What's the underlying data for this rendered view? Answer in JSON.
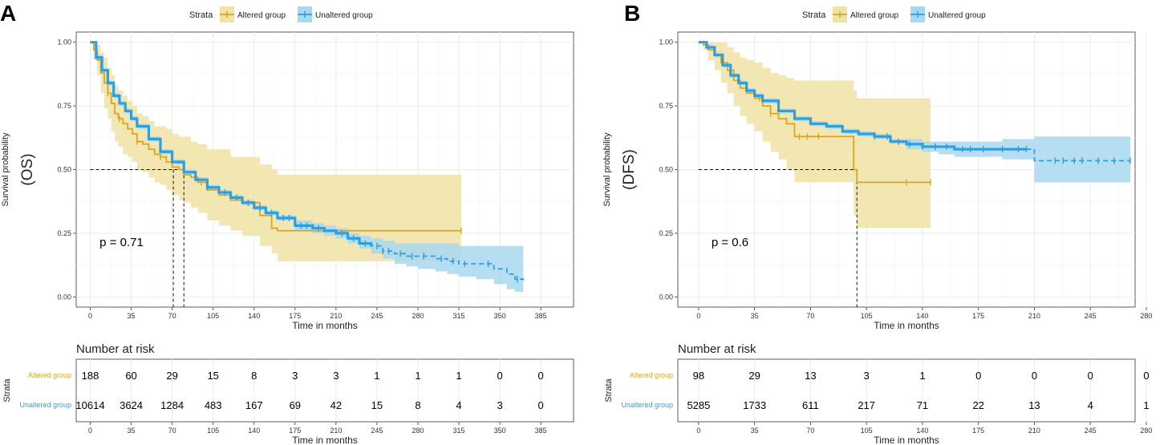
{
  "colors": {
    "altered": "#E7B800",
    "altered_line": "#DAA520",
    "unaltered": "#2E9FDF",
    "altered_band": "#F0E3A6",
    "unaltered_band": "#A8D8F0",
    "grid": "#EBEBEB",
    "axis": "#333333"
  },
  "chart_data": [
    {
      "type": "line",
      "panel_label": "A",
      "legend_title": "Strata",
      "legend": [
        "Altered group",
        "Unaltered group"
      ],
      "legend_position": "top",
      "ylabel_small": "Survival probability",
      "ylabel_big": "(OS)",
      "xlabel": "Time in months",
      "xlim": [
        -12,
        413
      ],
      "ylim": [
        -0.04,
        1.04
      ],
      "xticks": [
        0,
        35,
        70,
        105,
        140,
        175,
        210,
        245,
        280,
        315,
        350,
        385
      ],
      "yticks": [
        0.0,
        0.25,
        0.5,
        0.75,
        1.0
      ],
      "ytick_labels": [
        "0.00",
        "0.25",
        "0.50",
        "0.75",
        "1.00"
      ],
      "pvalue": "p = 0.71",
      "pvalue_pos": [
        8,
        0.2
      ],
      "median_lines": {
        "y": 0.5,
        "x": [
          71,
          80
        ]
      },
      "series": [
        {
          "name": "Altered group",
          "dash": false,
          "x": [
            0,
            3,
            6,
            9,
            12,
            15,
            18,
            21,
            24,
            28,
            32,
            36,
            40,
            45,
            50,
            55,
            60,
            65,
            70,
            76,
            80,
            86,
            92,
            100,
            110,
            120,
            130,
            145,
            155,
            160,
            317
          ],
          "y": [
            1.0,
            0.97,
            0.93,
            0.88,
            0.84,
            0.8,
            0.76,
            0.72,
            0.7,
            0.68,
            0.66,
            0.64,
            0.61,
            0.6,
            0.58,
            0.56,
            0.55,
            0.53,
            0.51,
            0.5,
            0.48,
            0.47,
            0.45,
            0.42,
            0.4,
            0.38,
            0.37,
            0.32,
            0.27,
            0.26,
            0.26
          ],
          "band_upper": [
            1.0,
            1.0,
            0.99,
            0.96,
            0.94,
            0.9,
            0.87,
            0.83,
            0.81,
            0.79,
            0.77,
            0.75,
            0.72,
            0.71,
            0.69,
            0.67,
            0.67,
            0.66,
            0.64,
            0.63,
            0.63,
            0.61,
            0.6,
            0.58,
            0.58,
            0.55,
            0.55,
            0.52,
            0.5,
            0.48,
            0.48
          ],
          "band_lower": [
            1.0,
            0.93,
            0.87,
            0.8,
            0.74,
            0.7,
            0.65,
            0.61,
            0.59,
            0.56,
            0.55,
            0.53,
            0.5,
            0.49,
            0.47,
            0.45,
            0.44,
            0.42,
            0.4,
            0.38,
            0.37,
            0.35,
            0.33,
            0.3,
            0.28,
            0.26,
            0.24,
            0.2,
            0.17,
            0.14,
            0.14
          ],
          "censors": [
            15,
            25,
            40,
            60,
            95,
            135,
            317
          ]
        },
        {
          "name": "Unaltered group",
          "dash_after": 240,
          "x": [
            0,
            5,
            10,
            15,
            20,
            25,
            30,
            35,
            40,
            50,
            60,
            70,
            80,
            90,
            100,
            110,
            120,
            130,
            140,
            150,
            160,
            175,
            190,
            200,
            210,
            220,
            230,
            240,
            250,
            260,
            270,
            280,
            295,
            305,
            315,
            330,
            345,
            356,
            363,
            370
          ],
          "y": [
            1.0,
            0.94,
            0.89,
            0.84,
            0.79,
            0.76,
            0.73,
            0.7,
            0.67,
            0.62,
            0.57,
            0.53,
            0.49,
            0.46,
            0.43,
            0.41,
            0.39,
            0.37,
            0.35,
            0.33,
            0.31,
            0.28,
            0.27,
            0.26,
            0.25,
            0.23,
            0.21,
            0.2,
            0.18,
            0.17,
            0.16,
            0.16,
            0.15,
            0.14,
            0.13,
            0.13,
            0.11,
            0.09,
            0.07,
            0.065
          ],
          "band_upper": [
            1.0,
            0.95,
            0.9,
            0.85,
            0.8,
            0.77,
            0.74,
            0.71,
            0.68,
            0.63,
            0.58,
            0.54,
            0.5,
            0.47,
            0.44,
            0.42,
            0.4,
            0.38,
            0.36,
            0.34,
            0.32,
            0.3,
            0.29,
            0.28,
            0.27,
            0.25,
            0.24,
            0.23,
            0.22,
            0.21,
            0.21,
            0.21,
            0.21,
            0.21,
            0.2,
            0.2,
            0.2,
            0.2,
            0.2,
            0.2
          ],
          "band_lower": [
            1.0,
            0.93,
            0.88,
            0.83,
            0.78,
            0.75,
            0.72,
            0.69,
            0.66,
            0.61,
            0.56,
            0.52,
            0.48,
            0.45,
            0.42,
            0.4,
            0.38,
            0.36,
            0.34,
            0.32,
            0.3,
            0.26,
            0.25,
            0.24,
            0.23,
            0.21,
            0.19,
            0.17,
            0.15,
            0.13,
            0.12,
            0.11,
            0.1,
            0.09,
            0.08,
            0.07,
            0.05,
            0.03,
            0.02,
            0.02
          ],
          "censors": [
            100,
            115,
            125,
            135,
            145,
            155,
            165,
            170,
            180,
            185,
            195,
            215,
            225,
            235,
            245,
            250,
            255,
            265,
            275,
            285,
            300,
            310,
            320,
            340,
            365
          ]
        }
      ],
      "risk_table": {
        "title": "Number at risk",
        "strata_label": "Strata",
        "xlabel": "Time in months",
        "rows": [
          {
            "label": "Altered group",
            "values": [
              "188",
              "60",
              "29",
              "15",
              "8",
              "3",
              "3",
              "1",
              "1",
              "1",
              "0",
              "0"
            ]
          },
          {
            "label": "Unaltered group",
            "values": [
              "10614",
              "3624",
              "1284",
              "483",
              "167",
              "69",
              "42",
              "15",
              "8",
              "4",
              "3",
              "0"
            ]
          }
        ]
      }
    },
    {
      "type": "line",
      "panel_label": "B",
      "legend_title": "Strata",
      "legend": [
        "Altered group",
        "Unaltered group"
      ],
      "legend_position": "top",
      "ylabel_small": "Survival probability",
      "ylabel_big": "(DFS)",
      "xlabel": "Time in months",
      "xlim": [
        -13,
        273
      ],
      "ylim": [
        -0.04,
        1.04
      ],
      "xticks": [
        0,
        35,
        70,
        105,
        140,
        175,
        210,
        245,
        280
      ],
      "yticks": [
        0.0,
        0.25,
        0.5,
        0.75,
        1.0
      ],
      "ytick_labels": [
        "0.00",
        "0.25",
        "0.50",
        "0.75",
        "1.00"
      ],
      "pvalue": "p = 0.6",
      "pvalue_pos": [
        8,
        0.2
      ],
      "median_lines": {
        "y": 0.5,
        "x": [
          99
        ]
      },
      "series": [
        {
          "name": "Altered group",
          "dash": false,
          "x": [
            0,
            3,
            6,
            10,
            14,
            18,
            22,
            26,
            30,
            35,
            40,
            45,
            50,
            55,
            60,
            70,
            80,
            95,
            97,
            99,
            130,
            145
          ],
          "y": [
            1.0,
            0.99,
            0.97,
            0.95,
            0.92,
            0.89,
            0.85,
            0.82,
            0.8,
            0.78,
            0.75,
            0.72,
            0.7,
            0.68,
            0.63,
            0.63,
            0.63,
            0.63,
            0.5,
            0.45,
            0.45,
            0.45
          ],
          "band_upper": [
            1.0,
            1.0,
            1.0,
            1.0,
            1.0,
            0.98,
            0.96,
            0.94,
            0.93,
            0.92,
            0.9,
            0.88,
            0.87,
            0.86,
            0.85,
            0.85,
            0.85,
            0.85,
            0.81,
            0.78,
            0.78,
            0.78
          ],
          "band_lower": [
            1.0,
            0.97,
            0.93,
            0.89,
            0.84,
            0.8,
            0.75,
            0.71,
            0.68,
            0.65,
            0.61,
            0.57,
            0.54,
            0.5,
            0.45,
            0.45,
            0.45,
            0.45,
            0.32,
            0.27,
            0.27,
            0.27
          ],
          "censors": [
            25,
            38,
            45,
            63,
            68,
            75,
            130,
            145
          ]
        },
        {
          "name": "Unaltered group",
          "dash_after": 205,
          "x": [
            0,
            5,
            10,
            15,
            20,
            25,
            30,
            35,
            40,
            50,
            60,
            70,
            80,
            90,
            100,
            110,
            120,
            130,
            140,
            150,
            160,
            175,
            190,
            200,
            207,
            210,
            230,
            250,
            270
          ],
          "y": [
            1.0,
            0.98,
            0.95,
            0.91,
            0.87,
            0.84,
            0.81,
            0.79,
            0.77,
            0.73,
            0.7,
            0.68,
            0.67,
            0.65,
            0.64,
            0.63,
            0.61,
            0.6,
            0.59,
            0.59,
            0.58,
            0.58,
            0.58,
            0.58,
            0.58,
            0.535,
            0.535,
            0.535,
            0.535
          ],
          "band_upper": [
            1.0,
            0.99,
            0.96,
            0.92,
            0.88,
            0.85,
            0.82,
            0.8,
            0.78,
            0.74,
            0.71,
            0.69,
            0.68,
            0.66,
            0.65,
            0.64,
            0.62,
            0.62,
            0.61,
            0.61,
            0.61,
            0.61,
            0.62,
            0.62,
            0.62,
            0.63,
            0.63,
            0.63,
            0.63
          ],
          "band_lower": [
            1.0,
            0.97,
            0.94,
            0.9,
            0.86,
            0.83,
            0.8,
            0.78,
            0.76,
            0.72,
            0.69,
            0.67,
            0.66,
            0.64,
            0.63,
            0.62,
            0.6,
            0.58,
            0.57,
            0.56,
            0.55,
            0.55,
            0.54,
            0.54,
            0.54,
            0.45,
            0.45,
            0.45,
            0.45
          ],
          "censors": [
            110,
            118,
            125,
            132,
            140,
            148,
            155,
            165,
            170,
            178,
            190,
            200,
            205,
            223,
            228,
            235,
            240,
            250,
            260,
            270
          ]
        }
      ],
      "risk_table": {
        "title": "Number at risk",
        "strata_label": "Strata",
        "xlabel": "Time in months",
        "rows": [
          {
            "label": "Altered group",
            "values": [
              "98",
              "29",
              "13",
              "3",
              "1",
              "0",
              "0",
              "0",
              "0"
            ]
          },
          {
            "label": "Unaltered group",
            "values": [
              "5285",
              "1733",
              "611",
              "217",
              "71",
              "22",
              "13",
              "4",
              "1"
            ]
          }
        ]
      }
    }
  ]
}
